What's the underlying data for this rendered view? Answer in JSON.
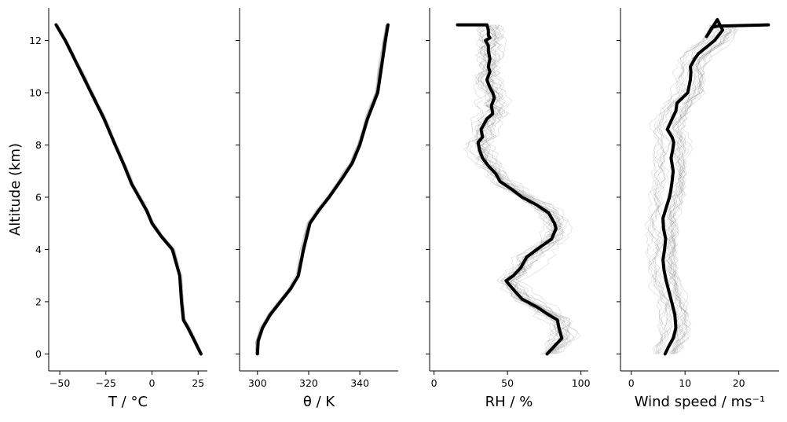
{
  "chart_data": [
    {
      "type": "line",
      "xlabel": "T / °C",
      "ylabel": "Altitude (km)",
      "xlim": [
        -56,
        30
      ],
      "ylim": [
        -0.65,
        13.25
      ],
      "xticks": [
        -50,
        -25,
        0,
        25
      ],
      "xtick_labels": [
        "−50",
        "−25",
        "0",
        "25"
      ],
      "yticks": [
        0,
        2,
        4,
        6,
        8,
        10,
        12
      ],
      "ytick_labels": [
        "0",
        "2",
        "4",
        "6",
        "8",
        "10",
        "12"
      ],
      "ensemble_spread": 1.8,
      "series": [
        {
          "style": "mean",
          "x": [
            26.5,
            23,
            19.5,
            17,
            16,
            15,
            11,
            5,
            0,
            -3,
            -7,
            -11,
            -15,
            -20,
            -26,
            -33,
            -40,
            -47,
            -52
          ],
          "y": [
            0,
            0.5,
            1,
            1.3,
            2,
            3,
            4,
            4.5,
            5,
            5.5,
            6,
            6.5,
            7.2,
            8,
            9,
            10,
            11,
            12,
            12.6
          ]
        }
      ]
    },
    {
      "type": "line",
      "xlabel": "θ / K",
      "ylabel": "",
      "xlim": [
        293,
        355
      ],
      "ylim": [
        -0.65,
        13.25
      ],
      "xticks": [
        300,
        320,
        340
      ],
      "xtick_labels": [
        "300",
        "320",
        "340"
      ],
      "ensemble_spread": 1.5,
      "series": [
        {
          "style": "mean",
          "x": [
            300,
            300.3,
            302,
            305,
            309,
            313,
            316,
            318,
            320.5,
            324,
            328,
            333,
            337,
            340,
            343,
            347,
            348.5,
            350,
            351
          ],
          "y": [
            0,
            0.5,
            1,
            1.5,
            2,
            2.5,
            3,
            4,
            5,
            5.5,
            6,
            6.7,
            7.3,
            8,
            9,
            10,
            11,
            12,
            12.6
          ]
        }
      ]
    },
    {
      "type": "line",
      "xlabel": "RH / %",
      "ylabel": "",
      "xlim": [
        -3,
        105
      ],
      "ylim": [
        -0.65,
        13.25
      ],
      "xticks": [
        0,
        50,
        100
      ],
      "xtick_labels": [
        "0",
        "50",
        "100"
      ],
      "ensemble_spread": 22,
      "series": [
        {
          "style": "mean",
          "x": [
            77,
            82,
            87,
            86,
            85,
            84,
            78,
            70,
            60,
            55,
            52,
            49,
            54,
            59,
            63,
            70,
            80,
            83,
            82,
            78,
            70,
            60,
            53,
            45,
            42,
            37,
            33,
            31,
            30,
            33,
            32,
            36,
            40,
            39,
            41,
            40,
            38,
            36,
            38,
            37,
            38,
            37,
            37,
            35,
            38,
            37,
            37,
            36,
            16
          ],
          "y": [
            0,
            0.3,
            0.6,
            0.8,
            1.0,
            1.3,
            1.5,
            1.8,
            2.1,
            2.4,
            2.6,
            2.8,
            3.0,
            3.3,
            3.7,
            4.0,
            4.4,
            4.8,
            5.0,
            5.4,
            5.7,
            6.0,
            6.3,
            6.6,
            6.9,
            7.2,
            7.5,
            7.8,
            8.1,
            8.3,
            8.6,
            9.0,
            9.2,
            9.5,
            9.8,
            10.0,
            10.2,
            10.5,
            10.8,
            11.0,
            11.3,
            11.6,
            11.8,
            12.0,
            12.1,
            12.2,
            12.4,
            12.6,
            12.6
          ]
        }
      ]
    },
    {
      "type": "line",
      "xlabel": "Wind speed / ms⁻¹",
      "ylabel": "",
      "xlim": [
        -2,
        27.5
      ],
      "ylim": [
        -0.65,
        13.25
      ],
      "xticks": [
        0,
        10,
        20
      ],
      "xtick_labels": [
        "0",
        "10",
        "20"
      ],
      "ensemble_spread": 4,
      "series": [
        {
          "style": "mean",
          "x": [
            6.3,
            7,
            7.8,
            8.3,
            8.1,
            7.5,
            7.0,
            6.5,
            6.1,
            5.9,
            6.2,
            6.4,
            6.0,
            5.9,
            6.5,
            7.1,
            7.3,
            7.6,
            7.8,
            7.4,
            7.7,
            7.9,
            7.6,
            6.7,
            7.6,
            8.3,
            8.5,
            10.5,
            11.0,
            11.1,
            11.0,
            11.8,
            12.5,
            15.5,
            17,
            16,
            14,
            15,
            16,
            25.5
          ],
          "y": [
            0,
            0.3,
            0.6,
            1.0,
            1.5,
            2.0,
            2.4,
            2.8,
            3.2,
            3.6,
            4.0,
            4.4,
            4.8,
            5.2,
            5.6,
            6.0,
            6.2,
            6.6,
            7.0,
            7.5,
            7.8,
            8.1,
            8.3,
            8.6,
            9.0,
            9.3,
            9.6,
            10.0,
            10.5,
            10.8,
            11.0,
            11.3,
            11.5,
            12.0,
            12.4,
            12.8,
            12.15,
            12.5,
            12.55,
            12.6
          ]
        }
      ]
    }
  ]
}
